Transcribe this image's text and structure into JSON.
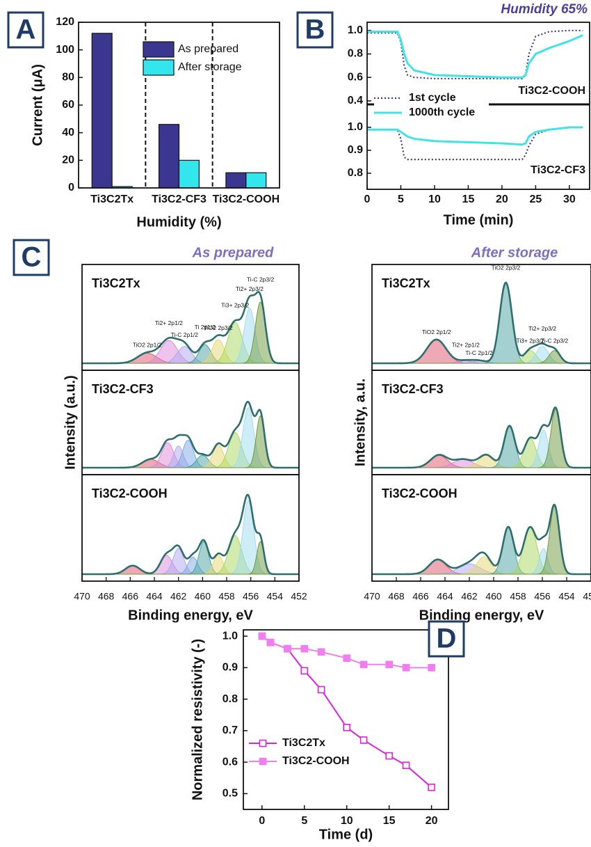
{
  "chart_data": [
    {
      "type": "bar",
      "panel_label": "A",
      "categories": [
        "Ti3C2Tx",
        "Ti3C2-CF3",
        "Ti3C2-COOH"
      ],
      "series": [
        {
          "name": "As prepared",
          "color": "#3b3690",
          "values": [
            112,
            46,
            11
          ]
        },
        {
          "name": "After storage",
          "color": "#33e6ee",
          "values": [
            1,
            20,
            11
          ]
        }
      ],
      "ylim": [
        0,
        120
      ],
      "yticks": [
        0,
        20,
        40,
        60,
        80,
        100,
        120
      ],
      "ylabel": "Current (μA)",
      "xlabel": "Humidity (%)"
    },
    {
      "type": "line",
      "panel_label": "B",
      "title": "Humidity 65%",
      "xlim": [
        0,
        33
      ],
      "xticks": [
        0,
        5,
        10,
        15,
        20,
        25,
        30
      ],
      "xlabel": "Time (min)",
      "x": [
        0,
        4.5,
        5,
        5.5,
        6,
        7,
        10,
        15,
        20,
        23,
        23.5,
        24,
        25,
        27,
        30,
        32
      ],
      "subplots": [
        {
          "annotation": "Ti3C2-COOH",
          "ylim": [
            0.37,
            1.07
          ],
          "yticks": [
            0.4,
            0.6,
            0.8,
            {
              "value": 1,
              "label": "1.0"
            }
          ],
          "series": [
            {
              "name": "1st cycle",
              "color": "#3d3a8c",
              "dash": "dotted",
              "values": [
                0.98,
                0.98,
                0.9,
                0.7,
                0.62,
                0.6,
                0.59,
                0.59,
                0.59,
                0.59,
                0.62,
                0.8,
                0.95,
                0.99,
                1.0,
                1.0
              ]
            },
            {
              "name": "1000th cycle",
              "color": "#40e4e4",
              "dash": "solid",
              "values": [
                0.99,
                0.99,
                0.92,
                0.8,
                0.72,
                0.66,
                0.62,
                0.61,
                0.6,
                0.6,
                0.62,
                0.72,
                0.8,
                0.85,
                0.91,
                0.96
              ]
            }
          ]
        },
        {
          "annotation": "Ti3C2-CF3",
          "ylim": [
            0.73,
            1.1
          ],
          "yticks": [
            0.8,
            0.9,
            {
              "value": 1,
              "label": "1.0"
            }
          ],
          "series": [
            {
              "color": "#3d3a8c",
              "dash": "dotted",
              "values": [
                0.99,
                0.99,
                0.95,
                0.87,
                0.86,
                0.86,
                0.86,
                0.86,
                0.86,
                0.86,
                0.88,
                0.92,
                0.97,
                0.99,
                1.0,
                1.0
              ]
            },
            {
              "color": "#40e4e4",
              "dash": "solid",
              "values": [
                0.99,
                0.99,
                0.98,
                0.97,
                0.96,
                0.95,
                0.94,
                0.935,
                0.93,
                0.925,
                0.93,
                0.96,
                0.98,
                0.99,
                1.0,
                1.0
              ]
            }
          ]
        }
      ]
    },
    {
      "type": "spectra",
      "panel_label": "C",
      "xlim": [
        470,
        452
      ],
      "xticks": [
        470,
        468,
        466,
        464,
        462,
        460,
        458,
        456,
        454,
        452
      ],
      "xlabel": "Binding energy, eV",
      "envelope_color": "#2e6e6e",
      "columns": [
        {
          "title": "As prepared",
          "ylabel": "Intensity (a.u.)",
          "panels": [
            {
              "label": "Ti3C2Tx",
              "centers": [
                464.6,
                462.8,
                461.5,
                459.8,
                458.7,
                457.3,
                456.1,
                455.2
              ],
              "heights": [
                0.12,
                0.27,
                0.2,
                0.22,
                0.28,
                0.48,
                0.65,
                0.72
              ],
              "widths": [
                0.8,
                0.7,
                0.6,
                0.5,
                0.5,
                0.6,
                0.45,
                0.42
              ],
              "colors": [
                "#e0546a",
                "#d98ad9",
                "#b0a8f0",
                "#4aa3a0",
                "#e8d870",
                "#a8d860",
                "#9fdcf0",
                "#6f9a3a"
              ],
              "peak_labels": [
                "TiO2 2p1/2",
                "Ti2+ 2p1/2",
                "Ti-C 2p1/2",
                "Ti 2p1/2",
                "TiO2 2p3/2",
                "Ti3+ 2p3/2",
                "Ti2+ 2p3/2",
                "Ti-C 2p3/2"
              ]
            },
            {
              "label": "Ti3C2-CF3",
              "centers": [
                464.3,
                462.9,
                462.0,
                461.2,
                460.0,
                458.7,
                457.3,
                456.2,
                455.2
              ],
              "heights": [
                0.1,
                0.3,
                0.26,
                0.33,
                0.15,
                0.27,
                0.42,
                0.72,
                0.62
              ],
              "widths": [
                0.7,
                0.5,
                0.4,
                0.45,
                0.5,
                0.45,
                0.55,
                0.45,
                0.35
              ],
              "colors": [
                "#e0546a",
                "#d98ad9",
                "#b0a8f0",
                "#7fa8e8",
                "#4aa3a0",
                "#e8d870",
                "#a8d860",
                "#9fdcf0",
                "#6f9a3a"
              ]
            },
            {
              "label": "Ti3C2-COOH",
              "centers": [
                465.8,
                463.0,
                462.0,
                460.8,
                459.9,
                458.7,
                457.3,
                456.2,
                455.2
              ],
              "heights": [
                0.1,
                0.22,
                0.3,
                0.2,
                0.38,
                0.22,
                0.45,
                0.86,
                0.38
              ],
              "widths": [
                0.6,
                0.5,
                0.45,
                0.4,
                0.4,
                0.4,
                0.55,
                0.45,
                0.3
              ],
              "colors": [
                "#e0546a",
                "#d98ad9",
                "#b0a8f0",
                "#7fa8e8",
                "#4aa3a0",
                "#e8d870",
                "#a8d860",
                "#9fdcf0",
                "#6f9a3a"
              ]
            }
          ]
        },
        {
          "title": "After storage",
          "ylabel": "Intensity, a.u.",
          "panels": [
            {
              "label": "Ti3C2Tx",
              "centers": [
                464.7,
                462.3,
                461.2,
                459.0,
                457.0,
                456.0,
                455.0
              ],
              "heights": [
                0.28,
                0.03,
                0.03,
                0.95,
                0.15,
                0.2,
                0.15
              ],
              "widths": [
                0.8,
                0.6,
                0.6,
                0.5,
                0.5,
                0.5,
                0.45
              ],
              "colors": [
                "#e0546a",
                "#d98ad9",
                "#b0a8f0",
                "#4aa3a0",
                "#a8d860",
                "#9fdcf0",
                "#6f9a3a"
              ],
              "peak_labels": [
                "TiO2 2p1/2",
                "Ti2+ 2p1/2",
                "Ti-C 2p1/2",
                "TiO2 2p3/2",
                "Ti3+ 2p3/2",
                "Ti2+ 2p3/2",
                "Ti-C 2p3/2"
              ]
            },
            {
              "label": "Ti3C2-CF3",
              "centers": [
                464.5,
                462.5,
                460.6,
                458.7,
                457.0,
                455.9,
                454.9
              ],
              "heights": [
                0.15,
                0.1,
                0.15,
                0.5,
                0.35,
                0.45,
                0.7
              ],
              "widths": [
                0.7,
                0.8,
                0.6,
                0.45,
                0.5,
                0.4,
                0.4
              ],
              "colors": [
                "#e0546a",
                "#d98ad9",
                "#e8d870",
                "#4aa3a0",
                "#a8d860",
                "#9fdcf0",
                "#6f9a3a"
              ]
            },
            {
              "label": "Ti3C2-COOH",
              "centers": [
                464.6,
                462.0,
                460.8,
                458.8,
                457.0,
                455.9,
                455.0
              ],
              "heights": [
                0.17,
                0.12,
                0.2,
                0.55,
                0.55,
                0.3,
                0.8
              ],
              "widths": [
                0.7,
                0.9,
                0.6,
                0.45,
                0.55,
                0.35,
                0.4
              ],
              "colors": [
                "#e0546a",
                "#b0a8f0",
                "#e8d870",
                "#4aa3a0",
                "#a8d860",
                "#9fdcf0",
                "#6f9a3a"
              ]
            }
          ]
        }
      ]
    },
    {
      "type": "line",
      "panel_label": "D",
      "x": [
        0,
        1,
        3,
        5,
        7,
        10,
        12,
        15,
        17,
        20
      ],
      "series": [
        {
          "name": "Ti3C2Tx",
          "color": "#e020e0",
          "marker": "open-square",
          "values": [
            1.0,
            0.98,
            0.96,
            0.89,
            0.83,
            0.71,
            0.67,
            0.62,
            0.59,
            0.52
          ]
        },
        {
          "name": "Ti3C2-COOH",
          "color": "#f07ef0",
          "marker": "filled-square",
          "values": [
            1.0,
            0.98,
            0.96,
            0.96,
            0.95,
            0.93,
            0.91,
            0.91,
            0.9,
            0.9
          ]
        }
      ],
      "xlim": [
        -2.2,
        22
      ],
      "xticks": [
        0,
        5,
        10,
        15,
        20
      ],
      "ylim": [
        0.45,
        1.02
      ],
      "yticks": [
        0.5,
        0.6,
        0.7,
        0.8,
        0.9,
        {
          "value": 1,
          "label": "1.0"
        }
      ],
      "xlabel": "Time (d)",
      "ylabel": "Normalized resistivity (-)",
      "legend": "lower left"
    }
  ]
}
